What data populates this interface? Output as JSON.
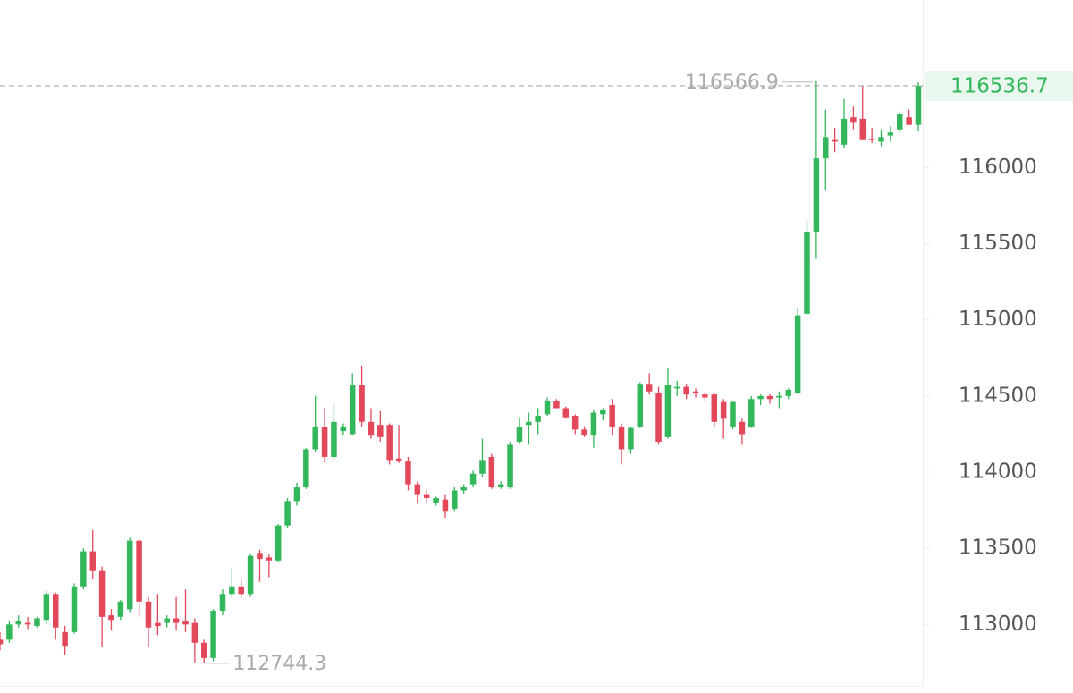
{
  "chart_data": {
    "type": "candlestick",
    "up_color": "#33b75b",
    "down_color": "#e3485a",
    "ylim": [
      112550,
      117100
    ],
    "yticks": [
      113000,
      113500,
      114000,
      114500,
      115000,
      115500,
      116000
    ],
    "open": [
      112900,
      112900,
      113000,
      113010,
      112990,
      113030,
      113200,
      112950,
      112950,
      113250,
      113480,
      113350,
      113060,
      113050,
      113100,
      113550,
      113150,
      113010,
      113010,
      113040,
      113020,
      113010,
      112880,
      112780,
      113090,
      113200,
      113250,
      113200,
      113470,
      113440,
      113420,
      113650,
      113810,
      113900,
      114150,
      114300,
      114100,
      114270,
      114250,
      114570,
      114330,
      114310,
      114310,
      114090,
      114070,
      113920,
      113850,
      113800,
      113820,
      113760,
      113880,
      113920,
      113990,
      114100,
      113900,
      113900,
      114200,
      114310,
      114330,
      114380,
      114470,
      114420,
      114370,
      114280,
      114240,
      114380,
      114440,
      114300,
      114150,
      114300,
      114580,
      114520,
      114230,
      114550,
      114560,
      114530,
      114510,
      114510,
      114460,
      114300,
      114330,
      114300,
      114480,
      114500,
      114490,
      114500,
      114520,
      115040,
      115580,
      116060,
      116180,
      116150,
      116330,
      116320,
      116190,
      116170,
      116210,
      116250,
      116330,
      116280
    ],
    "high": [
      112950,
      113020,
      113060,
      113050,
      113050,
      113220,
      113210,
      112990,
      113270,
      113500,
      113620,
      113380,
      113100,
      113160,
      113570,
      113560,
      113180,
      113200,
      113060,
      113180,
      113230,
      113040,
      112900,
      113100,
      113230,
      113370,
      113300,
      113460,
      113490,
      113460,
      113660,
      113830,
      113930,
      114160,
      114500,
      114420,
      114450,
      114320,
      114650,
      114700,
      114420,
      114400,
      114320,
      114310,
      114100,
      113940,
      113880,
      113840,
      113850,
      113900,
      113920,
      114010,
      114220,
      114120,
      113940,
      114200,
      114360,
      114390,
      114420,
      114490,
      114480,
      114430,
      114380,
      114300,
      114410,
      114420,
      114480,
      114320,
      114300,
      114590,
      114650,
      114560,
      114680,
      114600,
      114580,
      114550,
      114530,
      114520,
      114480,
      114470,
      114350,
      114500,
      114510,
      114510,
      114530,
      114550,
      115080,
      115650,
      116566.9,
      116380,
      116260,
      116450,
      116400,
      116540,
      116260,
      116250,
      116270,
      116370,
      116380,
      116560
    ],
    "low": [
      112830,
      112880,
      112980,
      112970,
      112980,
      113000,
      112900,
      112800,
      112940,
      113230,
      113300,
      112850,
      112960,
      113030,
      113080,
      113050,
      112850,
      112930,
      112980,
      112960,
      112950,
      112750,
      112744.3,
      112760,
      113060,
      113180,
      113170,
      113180,
      113280,
      113310,
      113410,
      113630,
      113780,
      113890,
      114130,
      114060,
      114080,
      114240,
      114240,
      114300,
      114220,
      114200,
      114050,
      114060,
      113880,
      113800,
      113800,
      113780,
      113700,
      113740,
      113860,
      113900,
      113970,
      113890,
      113890,
      113890,
      114190,
      114180,
      114250,
      114370,
      114420,
      114350,
      114250,
      114230,
      114160,
      114340,
      114240,
      114050,
      114120,
      114290,
      114510,
      114180,
      114220,
      114500,
      114480,
      114490,
      114460,
      114300,
      114220,
      114280,
      114180,
      114290,
      114440,
      114450,
      114420,
      114480,
      114510,
      115030,
      115400,
      115850,
      116100,
      116130,
      116250,
      116180,
      116160,
      116140,
      116170,
      116230,
      116280,
      116240
    ],
    "close": [
      112870,
      113000,
      113020,
      113000,
      113040,
      113200,
      112980,
      112860,
      113250,
      113480,
      113350,
      113050,
      113030,
      113150,
      113550,
      113150,
      112980,
      112990,
      113040,
      113010,
      113000,
      112880,
      112780,
      113090,
      113200,
      113250,
      113200,
      113450,
      113430,
      113420,
      113650,
      113810,
      113900,
      114150,
      114300,
      114100,
      114330,
      114300,
      114570,
      114330,
      114240,
      114230,
      114080,
      114070,
      113920,
      113850,
      113830,
      113830,
      113740,
      113880,
      113900,
      113990,
      114080,
      113900,
      113920,
      114180,
      114300,
      114330,
      114370,
      114470,
      114420,
      114360,
      114280,
      114240,
      114390,
      114410,
      114300,
      114150,
      114290,
      114580,
      114530,
      114200,
      114570,
      114560,
      114510,
      114520,
      114490,
      114330,
      114350,
      114460,
      114250,
      114480,
      114500,
      114480,
      114500,
      114540,
      115030,
      115580,
      116060,
      116200,
      116170,
      116320,
      116300,
      116180,
      116180,
      116200,
      116230,
      116350,
      116280,
      116536.7
    ]
  }
}
